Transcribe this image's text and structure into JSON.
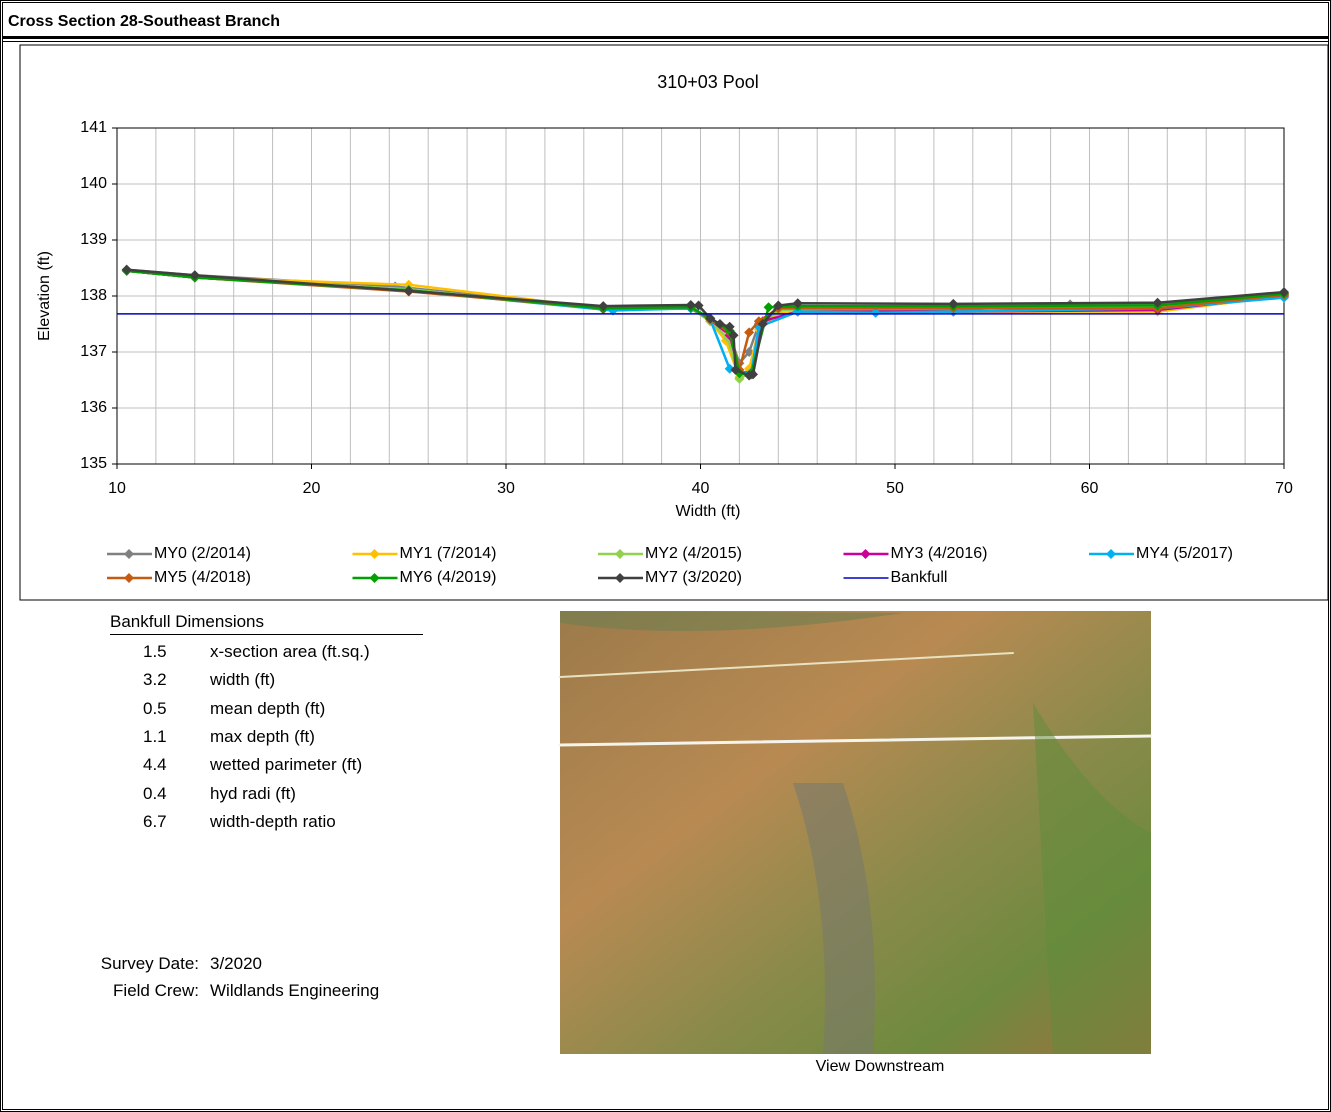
{
  "header": {
    "title": "Cross Section  28-Southeast Branch"
  },
  "chart_data": {
    "type": "line",
    "title": "310+03 Pool",
    "x_label": "Width (ft)",
    "y_label": "Elevation (ft)",
    "xlim": [
      10,
      70
    ],
    "xticks": [
      10,
      20,
      30,
      40,
      50,
      60,
      70
    ],
    "x_grid_step": 2,
    "ylim": [
      135,
      141
    ],
    "yticks": [
      135,
      136,
      137,
      138,
      139,
      140,
      141
    ],
    "grid": true,
    "series": [
      {
        "name": "MY0 (2/2014)",
        "color": "#808080",
        "marker": true,
        "x": [
          10.5,
          14,
          24.3,
          35,
          39.5,
          40.5,
          41.5,
          42,
          42.5,
          43,
          44,
          53,
          59,
          63.5,
          70
        ],
        "values": [
          138.47,
          138.37,
          138.17,
          137.78,
          137.8,
          137.6,
          137.3,
          136.8,
          137.0,
          137.5,
          137.7,
          137.75,
          137.85,
          137.85,
          138.05
        ]
      },
      {
        "name": "MY1 (7/2014)",
        "color": "#ffc000",
        "marker": true,
        "x": [
          10.5,
          14,
          25,
          35,
          39.5,
          40.5,
          41.3,
          42,
          42.5,
          43,
          44,
          53,
          63.5,
          70
        ],
        "values": [
          138.45,
          138.33,
          138.2,
          137.78,
          137.78,
          137.55,
          137.2,
          136.55,
          136.7,
          137.4,
          137.7,
          137.72,
          137.72,
          138.0
        ]
      },
      {
        "name": "MY2 (4/2015)",
        "color": "#92d050",
        "marker": true,
        "x": [
          10.5,
          14,
          25,
          35,
          39.5,
          40.5,
          41.4,
          42,
          42.6,
          43.2,
          44,
          53,
          63.5,
          70
        ],
        "values": [
          138.45,
          138.33,
          138.12,
          137.76,
          137.78,
          137.55,
          137.25,
          136.52,
          136.65,
          137.5,
          137.75,
          137.78,
          137.8,
          138.02
        ]
      },
      {
        "name": "MY3 (4/2016)",
        "color": "#cc0099",
        "marker": true,
        "x": [
          10.5,
          14,
          25,
          35,
          39.5,
          40.5,
          41.5,
          42,
          42.6,
          43.2,
          45,
          53,
          63.5,
          70
        ],
        "values": [
          138.45,
          138.33,
          138.1,
          137.77,
          137.78,
          137.58,
          137.3,
          136.65,
          136.62,
          137.55,
          137.72,
          137.72,
          137.75,
          138.0
        ]
      },
      {
        "name": "MY4 (5/2017)",
        "color": "#00b0f0",
        "marker": true,
        "x": [
          10.5,
          14,
          25,
          35.5,
          39.5,
          40.5,
          41.5,
          42,
          42.6,
          43,
          45,
          49,
          53,
          63.5,
          70
        ],
        "values": [
          138.45,
          138.33,
          138.1,
          137.74,
          137.78,
          137.58,
          136.7,
          136.65,
          136.6,
          137.45,
          137.72,
          137.7,
          137.72,
          137.78,
          137.97
        ]
      },
      {
        "name": "MY5 (4/2018)",
        "color": "#c55a11",
        "marker": true,
        "x": [
          10.5,
          14,
          25,
          35,
          39.5,
          40.5,
          41.5,
          42,
          42.5,
          43,
          44,
          53,
          63.5,
          70
        ],
        "values": [
          138.45,
          138.33,
          138.08,
          137.78,
          137.8,
          137.58,
          137.35,
          136.68,
          137.35,
          137.55,
          137.78,
          137.78,
          137.78,
          138.02
        ]
      },
      {
        "name": "MY6 (4/2019)",
        "color": "#00a000",
        "marker": true,
        "x": [
          10.5,
          14,
          25,
          35,
          39.5,
          40.5,
          41.5,
          42,
          42.6,
          43.5,
          45,
          53,
          63.5,
          70
        ],
        "values": [
          138.45,
          138.33,
          138.1,
          137.78,
          137.8,
          137.6,
          137.38,
          136.62,
          136.6,
          137.8,
          137.82,
          137.82,
          137.83,
          138.04
        ]
      },
      {
        "name": "MY7 (3/2020)",
        "color": "#404040",
        "marker": true,
        "x": [
          10.5,
          14,
          25,
          35,
          39.5,
          39.9,
          40.5,
          41,
          41.5,
          41.7,
          41.8,
          42.5,
          42.7,
          43.2,
          44,
          45,
          53,
          63.5,
          70
        ],
        "values": [
          138.47,
          138.37,
          138.09,
          137.82,
          137.84,
          137.83,
          137.6,
          137.5,
          137.45,
          137.3,
          136.68,
          136.58,
          136.6,
          137.5,
          137.83,
          137.87,
          137.86,
          137.88,
          138.07
        ]
      },
      {
        "name": "Bankfull",
        "color": "#0000c0",
        "marker": false,
        "x": [
          10,
          70
        ],
        "values": [
          137.68,
          137.68
        ]
      }
    ]
  },
  "bankfull_dimensions": {
    "title": "Bankfull Dimensions",
    "rows": [
      {
        "value": 1.5,
        "label": "x-section area (ft.sq.)"
      },
      {
        "value": 3.2,
        "label": "width (ft)"
      },
      {
        "value": 0.5,
        "label": "mean depth (ft)"
      },
      {
        "value": 1.1,
        "label": "max depth (ft)"
      },
      {
        "value": 4.4,
        "label": "wetted parimeter (ft)"
      },
      {
        "value": 0.4,
        "label": "hyd radi (ft)"
      },
      {
        "value": 6.7,
        "label": "width-depth ratio"
      }
    ]
  },
  "survey": {
    "date_label": "Survey Date:",
    "date": "3/2020",
    "crew_label": "Field Crew:",
    "crew": "Wildlands Engineering"
  },
  "photo": {
    "caption": "View Downstream"
  }
}
